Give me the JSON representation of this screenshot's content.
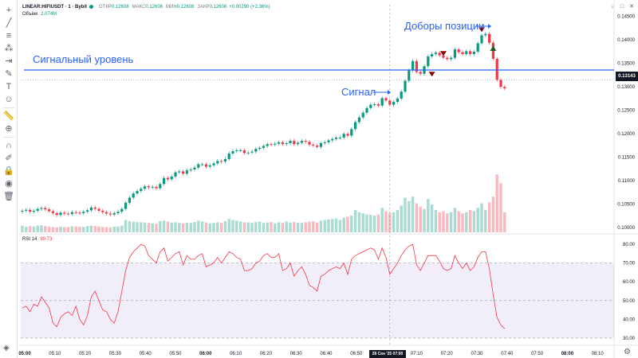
{
  "header": {
    "symbol": "LINEAR:HIFIUSDT · 1 · Bybit",
    "open_label": "ОТКР",
    "open_value": "0.12608",
    "high_label": "МАКС",
    "high_value": "0.12608",
    "low_label": "МИН",
    "low_value": "0.12608",
    "close_label": "ЗАКР",
    "close_value": "0.12608",
    "change": "+0.00290 (+2.36%)"
  },
  "volume_legend": {
    "label": "Объём",
    "value": "2.074M"
  },
  "rsi_legend": {
    "label": "RSI 14",
    "value": "80.73"
  },
  "current_price": "0.13143",
  "annotations": {
    "signal_level": "Сигнальный уровень",
    "signal": "Сигнал",
    "adds": "Доборы позиции"
  },
  "price_axis": [
    "0.14500",
    "0.14000",
    "0.13500",
    "0.13000",
    "0.12500",
    "0.12000",
    "0.11500",
    "0.11000",
    "0.10500",
    "0.10000"
  ],
  "rsi_axis": [
    "80.00",
    "70.00",
    "60.00",
    "50.00",
    "40.00",
    "30.00"
  ],
  "time_axis": [
    "05:00",
    "05:10",
    "05:20",
    "05:30",
    "05:40",
    "05:50",
    "06:00",
    "06:10",
    "06:20",
    "06:30",
    "06:40",
    "06:50",
    "07:00",
    "07:10",
    "07:20",
    "07:30",
    "07:40",
    "07:50",
    "08:00",
    "08:10"
  ],
  "crosshair_date": "28 Сен '25 07:00",
  "toolbar_icons": [
    "crosshair-icon",
    "trendline-icon",
    "fib-icon",
    "pattern-icon",
    "forecast-icon",
    "brush-icon",
    "text-icon",
    "emoji-icon",
    "ruler-icon",
    "zoom-icon",
    "magnet-icon",
    "lock-draw-icon",
    "lock-icon",
    "eye-icon",
    "trash-icon"
  ],
  "colors": {
    "up": "#089981",
    "down": "#f23645",
    "level": "#2962ff",
    "rsi": "#f23645",
    "rsi_band": "#7e57c2"
  },
  "chart_data": {
    "type": "candlestick",
    "title": "",
    "price_ylim": [
      0.0985,
      0.1475
    ],
    "price_axis_ticks": [
      0.145,
      0.14,
      0.135,
      0.13,
      0.125,
      0.12,
      0.115,
      0.11,
      0.105,
      0.1
    ],
    "signal_level": 0.1336,
    "close_series": [
      0.1036,
      0.1038,
      0.1034,
      0.1036,
      0.104,
      0.1042,
      0.1039,
      0.1035,
      0.1031,
      0.1027,
      0.1032,
      0.103,
      0.1029,
      0.1033,
      0.1032,
      0.1031,
      0.1034,
      0.1037,
      0.1043,
      0.104,
      0.1036,
      0.1033,
      0.103,
      0.1028,
      0.1031,
      0.1034,
      0.104,
      0.1053,
      0.1064,
      0.1073,
      0.1078,
      0.1083,
      0.1088,
      0.1086,
      0.1087,
      0.1084,
      0.1093,
      0.1106,
      0.1103,
      0.1109,
      0.1118,
      0.112,
      0.1115,
      0.1122,
      0.1124,
      0.1128,
      0.1135,
      0.1135,
      0.113,
      0.1133,
      0.1137,
      0.1142,
      0.1141,
      0.1146,
      0.1158,
      0.1163,
      0.1165,
      0.1165,
      0.1159,
      0.116,
      0.1162,
      0.1168,
      0.117,
      0.1174,
      0.1178,
      0.1177,
      0.1179,
      0.1182,
      0.1178,
      0.118,
      0.1185,
      0.1178,
      0.1181,
      0.1185,
      0.1183,
      0.1177,
      0.1175,
      0.1172,
      0.118,
      0.1182,
      0.1186,
      0.1189,
      0.1192,
      0.1192,
      0.12,
      0.1196,
      0.121,
      0.1225,
      0.1235,
      0.1245,
      0.1255,
      0.1262,
      0.1263,
      0.126,
      0.1276,
      0.1271,
      0.1262,
      0.1268,
      0.1275,
      0.129,
      0.1313,
      0.1335,
      0.1355,
      0.1332,
      0.1328,
      0.1344,
      0.1365,
      0.137,
      0.1373,
      0.1367,
      0.1362,
      0.1359,
      0.1362,
      0.138,
      0.1374,
      0.137,
      0.1376,
      0.137,
      0.1375,
      0.1393,
      0.141,
      0.1413,
      0.1394,
      0.136,
      0.1315,
      0.13,
      0.1297
    ],
    "volume_series": [
      0.3,
      0.25,
      0.28,
      0.26,
      0.3,
      0.32,
      0.28,
      0.26,
      0.24,
      0.22,
      0.25,
      0.23,
      0.24,
      0.27,
      0.26,
      0.25,
      0.24,
      0.28,
      0.3,
      0.28,
      0.26,
      0.24,
      0.23,
      0.22,
      0.25,
      0.26,
      0.3,
      0.55,
      0.5,
      0.48,
      0.46,
      0.45,
      0.44,
      0.42,
      0.4,
      0.38,
      0.5,
      0.52,
      0.48,
      0.44,
      0.45,
      0.42,
      0.4,
      0.43,
      0.42,
      0.46,
      0.52,
      0.48,
      0.44,
      0.4,
      0.42,
      0.45,
      0.42,
      0.5,
      0.6,
      0.55,
      0.52,
      0.48,
      0.45,
      0.44,
      0.42,
      0.46,
      0.48,
      0.42,
      0.44,
      0.46,
      0.4,
      0.45,
      0.42,
      0.48,
      0.44,
      0.46,
      0.43,
      0.42,
      0.45,
      0.48,
      0.5,
      0.44,
      0.52,
      0.55,
      0.58,
      0.6,
      0.62,
      0.55,
      0.65,
      0.7,
      0.75,
      1.0,
      0.9,
      0.85,
      0.8,
      0.78,
      0.75,
      0.8,
      1.1,
      0.95,
      0.88,
      0.9,
      1.0,
      1.2,
      1.55,
      1.4,
      1.6,
      1.3,
      1.15,
      1.05,
      1.5,
      1.25,
      1.0,
      0.9,
      0.95,
      0.85,
      0.9,
      1.1,
      0.95,
      0.85,
      0.9,
      1.0,
      0.95,
      1.1,
      1.3,
      1.0,
      1.35,
      1.6,
      2.6,
      2.2,
      0.9
    ],
    "rsi_ylim": [
      27,
      83
    ],
    "rsi_bands": [
      70,
      50,
      30
    ],
    "rsi_series": [
      46,
      47,
      44,
      48,
      47,
      52,
      49,
      46,
      38,
      36,
      41,
      43,
      44,
      42,
      47,
      40,
      37,
      42,
      52,
      55,
      50,
      45,
      44,
      40,
      38,
      44,
      55,
      66,
      73,
      76,
      78,
      80,
      79,
      74,
      72,
      70,
      76,
      78,
      71,
      73,
      75,
      76,
      69,
      74,
      72,
      72,
      74,
      75,
      68,
      69,
      70,
      73,
      70,
      73,
      76,
      75,
      73,
      72,
      66,
      66,
      67,
      70,
      71,
      74,
      75,
      73,
      73,
      75,
      66,
      67,
      70,
      63,
      66,
      68,
      64,
      58,
      57,
      55,
      63,
      64,
      66,
      67,
      68,
      67,
      70,
      64,
      72,
      74,
      75,
      76,
      77,
      78,
      77,
      72,
      78,
      73,
      64,
      67,
      70,
      74,
      77,
      79,
      80,
      69,
      66,
      70,
      74,
      74,
      74,
      71,
      67,
      66,
      67,
      74,
      70,
      67,
      70,
      66,
      68,
      73,
      76,
      76,
      67,
      53,
      41,
      37,
      35
    ],
    "sell_markers": [
      0.1322,
      0.1366,
      0.1417
    ],
    "buy_markers": [
      0.1387
    ]
  }
}
